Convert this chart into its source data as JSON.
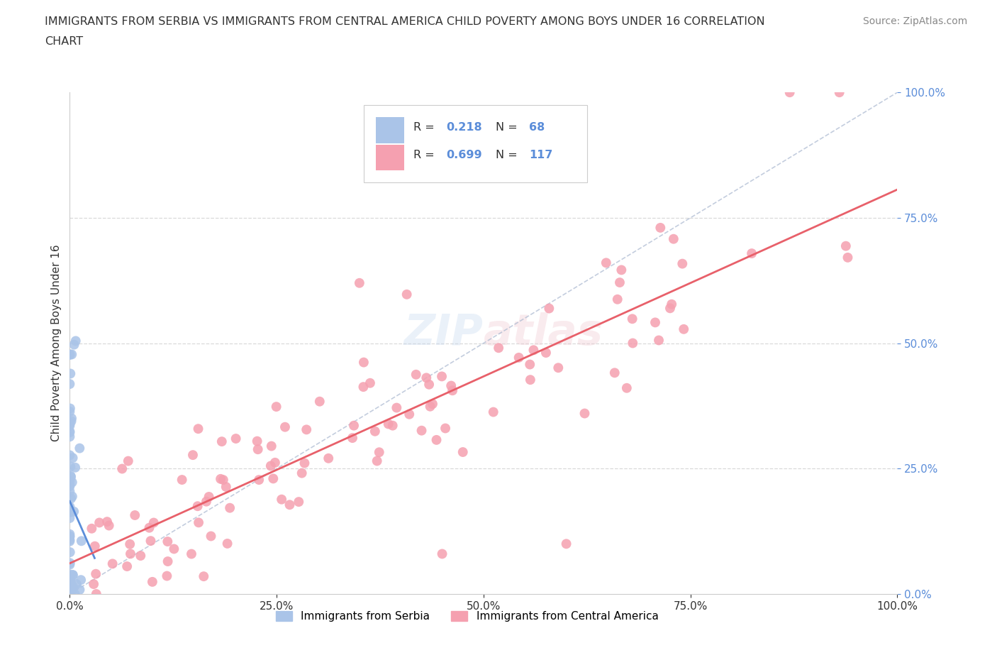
{
  "title_line1": "IMMIGRANTS FROM SERBIA VS IMMIGRANTS FROM CENTRAL AMERICA CHILD POVERTY AMONG BOYS UNDER 16 CORRELATION",
  "title_line2": "CHART",
  "source": "Source: ZipAtlas.com",
  "ylabel": "Child Poverty Among Boys Under 16",
  "xlabel_serbia": "Immigrants from Serbia",
  "xlabel_central": "Immigrants from Central America",
  "serbia_R": 0.218,
  "serbia_N": 68,
  "central_R": 0.699,
  "central_N": 117,
  "serbia_color": "#aac4e8",
  "central_color": "#f5a0b0",
  "serbia_line_color": "#5b8dd9",
  "central_line_color": "#e8606a",
  "diag_color": "#aab8d0",
  "watermark_color": "#c8d8f0",
  "title_color": "#333333",
  "source_color": "#888888",
  "tick_color_y": "#5b8dd9",
  "tick_color_x": "#333333",
  "legend_border_color": "#cccccc",
  "grid_color": "#e8e8e8"
}
